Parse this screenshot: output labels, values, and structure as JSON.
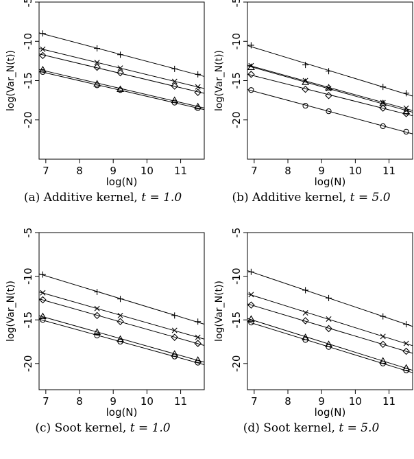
{
  "chart_data": [
    {
      "type": "line",
      "caption": "(a) Additive kernel,",
      "caption_math": "t = 1.0",
      "xlabel": "log(N)",
      "ylabel": "log(Var_N(t))",
      "xlim": [
        6.8,
        11.7
      ],
      "ylim": [
        -25,
        -5
      ],
      "xticks": [
        7,
        8,
        9,
        10,
        11
      ],
      "yticks": [
        -5,
        -10,
        -15,
        -20
      ],
      "grid": false,
      "x": [
        6.91,
        8.52,
        9.21,
        10.82,
        11.51
      ],
      "series": [
        {
          "marker": "plus",
          "values": [
            -9.0,
            -10.9,
            -11.7,
            -13.5,
            -14.2
          ]
        },
        {
          "marker": "cross",
          "values": [
            -11.0,
            -12.7,
            -13.4,
            -15.1,
            -15.8
          ]
        },
        {
          "marker": "diamond",
          "values": [
            -11.8,
            -13.3,
            -14.0,
            -15.7,
            -16.5
          ]
        },
        {
          "marker": "triangle",
          "values": [
            -13.6,
            -15.4,
            -16.1,
            -17.5,
            -18.3
          ]
        },
        {
          "marker": "circle",
          "values": [
            -13.9,
            -15.6,
            -16.2,
            -17.8,
            -18.5
          ]
        }
      ]
    },
    {
      "type": "line",
      "caption": "(b) Additive kernel,",
      "caption_math": "t = 5.0",
      "xlabel": "log(N)",
      "ylabel": "log(Var_N(t))",
      "xlim": [
        6.8,
        11.7
      ],
      "ylim": [
        -25,
        -5
      ],
      "xticks": [
        7,
        8,
        9,
        10,
        11
      ],
      "yticks": [
        -5,
        -10,
        -15,
        -20
      ],
      "grid": false,
      "x": [
        6.91,
        8.52,
        9.21,
        10.82,
        11.51
      ],
      "series": [
        {
          "marker": "plus",
          "values": [
            -10.5,
            -13.0,
            -13.8,
            -15.8,
            -16.6
          ]
        },
        {
          "marker": "cross",
          "values": [
            -13.1,
            -15.0,
            -16.0,
            -17.8,
            -18.5
          ]
        },
        {
          "marker": "triangle",
          "values": [
            -13.3,
            -15.2,
            -15.9,
            -17.9,
            -18.9
          ]
        },
        {
          "marker": "diamond",
          "values": [
            -14.2,
            -16.1,
            -16.9,
            -18.5,
            -19.2
          ]
        },
        {
          "marker": "circle",
          "values": [
            -16.2,
            -18.2,
            -18.9,
            -20.8,
            -21.5
          ]
        }
      ]
    },
    {
      "type": "line",
      "caption": "(c) Soot kernel,",
      "caption_math": "t = 1.0",
      "xlabel": "log(N)",
      "ylabel": "log(Var_N(t))",
      "xlim": [
        6.8,
        11.7
      ],
      "ylim": [
        -23,
        -5
      ],
      "xticks": [
        7,
        8,
        9,
        10,
        11
      ],
      "yticks": [
        -5,
        -10,
        -15,
        -20
      ],
      "grid": false,
      "x": [
        6.91,
        8.52,
        9.21,
        10.82,
        11.51
      ],
      "series": [
        {
          "marker": "plus",
          "values": [
            -9.8,
            -11.8,
            -12.6,
            -14.5,
            -15.2
          ]
        },
        {
          "marker": "cross",
          "values": [
            -11.9,
            -13.7,
            -14.5,
            -16.2,
            -17.0
          ]
        },
        {
          "marker": "diamond",
          "values": [
            -12.7,
            -14.5,
            -15.2,
            -17.0,
            -17.7
          ]
        },
        {
          "marker": "triangle",
          "values": [
            -14.6,
            -16.4,
            -17.2,
            -18.9,
            -19.6
          ]
        },
        {
          "marker": "circle",
          "values": [
            -15.0,
            -16.8,
            -17.5,
            -19.2,
            -19.9
          ]
        }
      ]
    },
    {
      "type": "line",
      "caption": "(d) Soot kernel,",
      "caption_math": "t = 5.0",
      "xlabel": "log(N)",
      "ylabel": "log(Var_N(t))",
      "xlim": [
        6.8,
        11.7
      ],
      "ylim": [
        -23,
        -5
      ],
      "xticks": [
        7,
        8,
        9,
        10,
        11
      ],
      "yticks": [
        -5,
        -10,
        -15,
        -20
      ],
      "grid": false,
      "x": [
        6.91,
        8.52,
        9.21,
        10.82,
        11.51
      ],
      "series": [
        {
          "marker": "plus",
          "values": [
            -9.5,
            -11.6,
            -12.5,
            -14.6,
            -15.5
          ]
        },
        {
          "marker": "cross",
          "values": [
            -12.1,
            -14.2,
            -14.9,
            -16.9,
            -17.7
          ]
        },
        {
          "marker": "diamond",
          "values": [
            -13.3,
            -15.1,
            -16.0,
            -17.8,
            -18.6
          ]
        },
        {
          "marker": "triangle",
          "values": [
            -14.9,
            -17.0,
            -17.8,
            -19.7,
            -20.5
          ]
        },
        {
          "marker": "circle",
          "values": [
            -15.3,
            -17.3,
            -18.1,
            -20.0,
            -20.8
          ]
        }
      ]
    }
  ]
}
